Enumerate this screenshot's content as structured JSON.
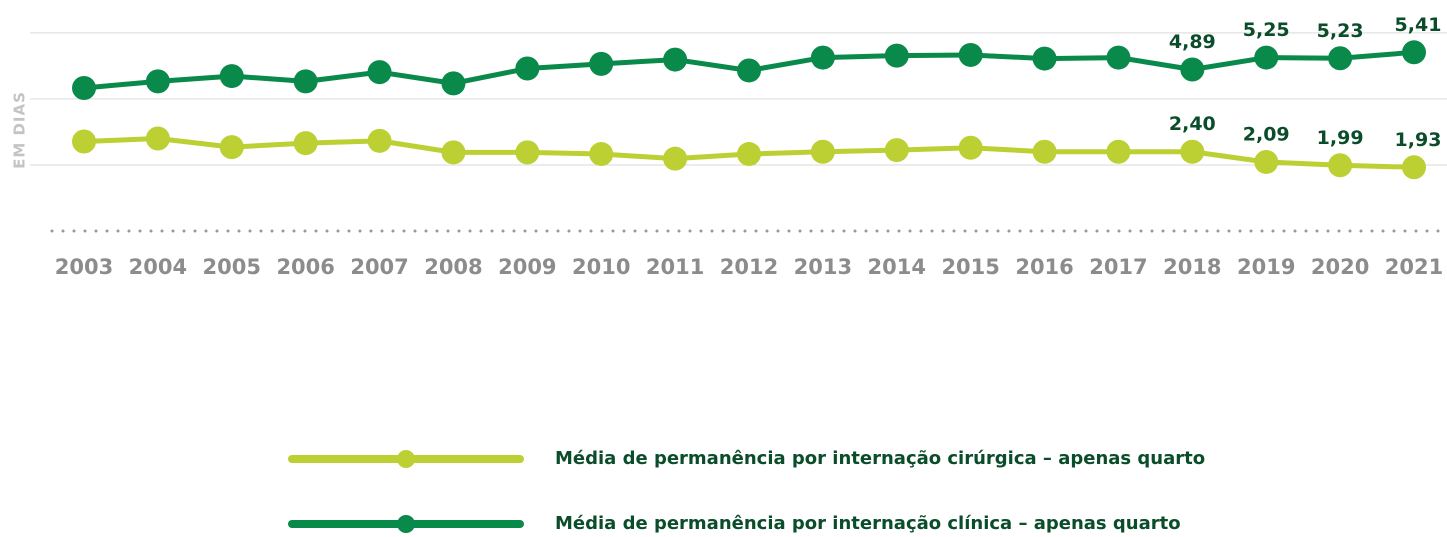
{
  "chart_data": {
    "type": "line",
    "y_label": "EM DIAS",
    "categories": [
      "2003",
      "2004",
      "2005",
      "2006",
      "2007",
      "2008",
      "2009",
      "2010",
      "2011",
      "2012",
      "2013",
      "2014",
      "2015",
      "2016",
      "2017",
      "2018",
      "2019",
      "2020",
      "2021"
    ],
    "series": [
      {
        "name": "Média de permanência por internação cirúrgica – apenas quarto",
        "color": "#bcd034",
        "values": [
          2.71,
          2.8,
          2.54,
          2.66,
          2.73,
          2.38,
          2.38,
          2.33,
          2.19,
          2.33,
          2.4,
          2.45,
          2.52,
          2.4,
          2.4,
          2.4,
          2.09,
          1.99,
          1.93
        ],
        "value_labels": [
          null,
          null,
          null,
          null,
          null,
          null,
          null,
          null,
          null,
          null,
          null,
          null,
          null,
          null,
          null,
          "2,40",
          "2,09",
          "1,99",
          "1,93"
        ]
      },
      {
        "name": "Média de permanência por internação clínica – apenas quarto",
        "color": "#0a8a4a",
        "values": [
          4.33,
          4.53,
          4.69,
          4.53,
          4.81,
          4.47,
          4.92,
          5.06,
          5.19,
          4.86,
          5.25,
          5.31,
          5.33,
          5.22,
          5.25,
          4.89,
          5.25,
          5.23,
          5.41
        ],
        "value_labels": [
          null,
          null,
          null,
          null,
          null,
          null,
          null,
          null,
          null,
          null,
          null,
          null,
          null,
          null,
          null,
          "4,89",
          "5,25",
          "5,23",
          "5,41"
        ]
      }
    ],
    "ylim": [
      0,
      6.6
    ],
    "yticks": [
      2,
      4,
      6
    ],
    "grid": true
  }
}
